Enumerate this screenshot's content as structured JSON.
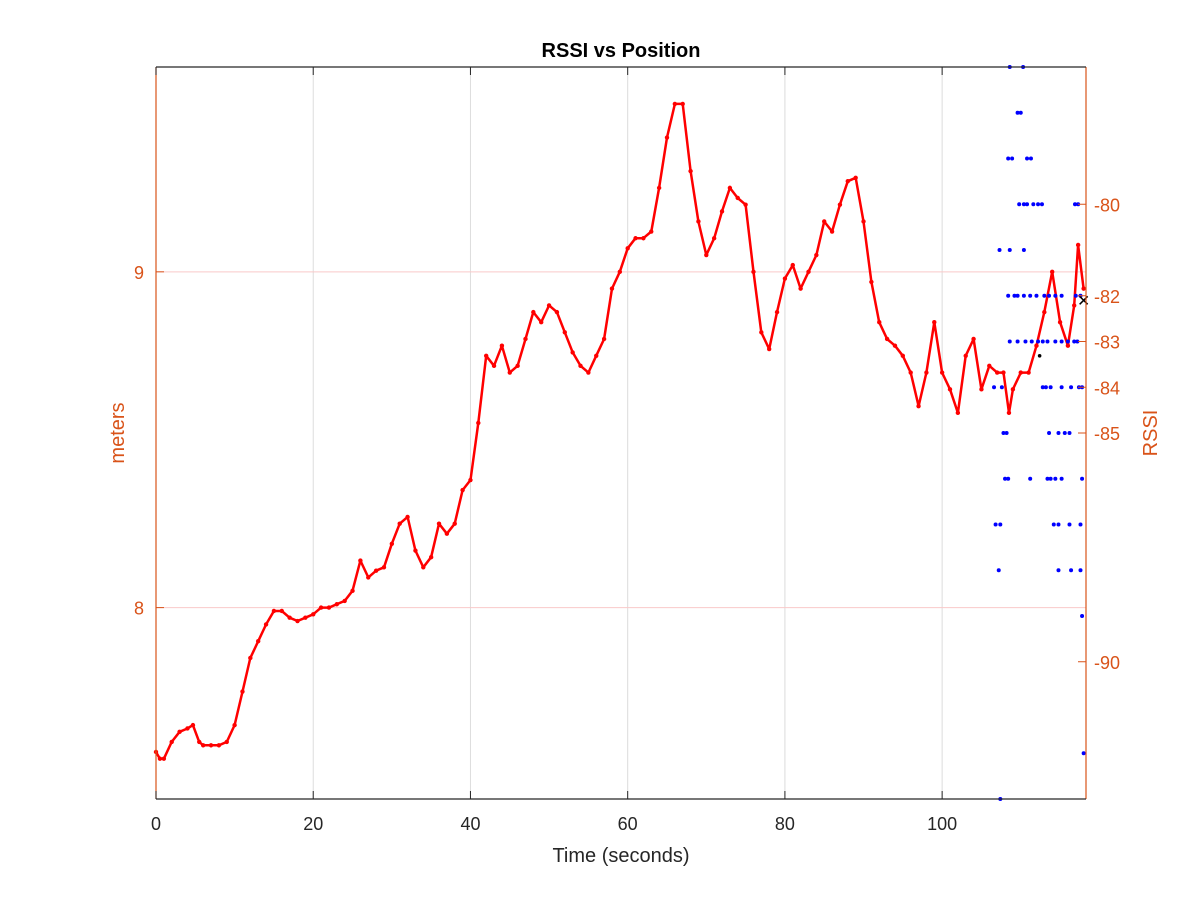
{
  "chart_data": {
    "type": "line",
    "title": "RSSI vs Position",
    "xlabel": "Time (seconds)",
    "ylabel_left": "meters",
    "ylabel_right": "RSSI",
    "xlim": [
      0,
      118.3
    ],
    "xticks": [
      0,
      20,
      40,
      60,
      80,
      100
    ],
    "ylim_left": [
      7.43,
      9.61
    ],
    "yticks_left": [
      8,
      9
    ],
    "ylim_right": [
      -93,
      -77
    ],
    "yticks_right": [
      -80,
      -82,
      -83,
      -84,
      -85,
      -90
    ],
    "grid": true,
    "colors": {
      "position": "#ff0000",
      "rssi": "#0000ff",
      "axis_accent": "#D95319",
      "grid": "#dcdcdc",
      "grid_right": "#f9c9c9"
    },
    "series": [
      {
        "name": "Position (meters)",
        "axis": "left",
        "style": "line-with-dots",
        "color": "#ff0000",
        "x": [
          0,
          0.5,
          1,
          2,
          3,
          4,
          4.7,
          5.5,
          6,
          7,
          8,
          9,
          10,
          11,
          12,
          13,
          14,
          15,
          16,
          17,
          18,
          19,
          20,
          21,
          22,
          23,
          24,
          25,
          26,
          27,
          28,
          29,
          30,
          31,
          32,
          33,
          34,
          35,
          36,
          37,
          38,
          39,
          40,
          41,
          42,
          43,
          44,
          45,
          46,
          47,
          48,
          49,
          50,
          51,
          52,
          53,
          54,
          55,
          56,
          57,
          58,
          59,
          60,
          61,
          62,
          63,
          64,
          65,
          66,
          67,
          68,
          69,
          70,
          71,
          72,
          73,
          74,
          75,
          76,
          77,
          78,
          79,
          80,
          81,
          82,
          83,
          84,
          85,
          86,
          87,
          88,
          89,
          90,
          91,
          92,
          93,
          94,
          95,
          96,
          97,
          98,
          99,
          100,
          101,
          102,
          103,
          104,
          105,
          106,
          107,
          107.8,
          108.5,
          109,
          110,
          111,
          112,
          113,
          114,
          115,
          116,
          116.8,
          117.3,
          118
        ],
        "values": [
          7.57,
          7.55,
          7.55,
          7.6,
          7.63,
          7.64,
          7.65,
          7.6,
          7.59,
          7.59,
          7.59,
          7.6,
          7.65,
          7.75,
          7.85,
          7.9,
          7.95,
          7.99,
          7.99,
          7.97,
          7.96,
          7.97,
          7.98,
          8.0,
          8.0,
          8.01,
          8.02,
          8.05,
          8.14,
          8.09,
          8.11,
          8.12,
          8.19,
          8.25,
          8.27,
          8.17,
          8.12,
          8.15,
          8.25,
          8.22,
          8.25,
          8.35,
          8.38,
          8.55,
          8.75,
          8.72,
          8.78,
          8.7,
          8.72,
          8.8,
          8.88,
          8.85,
          8.9,
          8.88,
          8.82,
          8.76,
          8.72,
          8.7,
          8.75,
          8.8,
          8.95,
          9.0,
          9.07,
          9.1,
          9.1,
          9.12,
          9.25,
          9.4,
          9.5,
          9.5,
          9.3,
          9.15,
          9.05,
          9.1,
          9.18,
          9.25,
          9.22,
          9.2,
          9.0,
          8.82,
          8.77,
          8.88,
          8.98,
          9.02,
          8.95,
          9.0,
          9.05,
          9.15,
          9.12,
          9.2,
          9.27,
          9.28,
          9.15,
          8.97,
          8.85,
          8.8,
          8.78,
          8.75,
          8.7,
          8.6,
          8.7,
          8.85,
          8.7,
          8.65,
          8.58,
          8.75,
          8.8,
          8.65,
          8.72,
          8.7,
          8.7,
          8.58,
          8.65,
          8.7,
          8.7,
          8.78,
          8.88,
          9.0,
          8.85,
          8.78,
          8.9,
          9.08,
          8.95
        ]
      },
      {
        "name": "RSSI",
        "axis": "right",
        "style": "dots",
        "color": "#0000ff",
        "x": [
          108.6,
          110.3,
          109.6,
          110.0,
          108.4,
          108.9,
          110.8,
          111.3,
          109.8,
          110.4,
          110.8,
          111.6,
          112.2,
          112.7,
          116.9,
          117.3,
          107.3,
          108.6,
          110.4,
          108.4,
          109.2,
          109.6,
          110.4,
          111.2,
          112.0,
          113.0,
          113.6,
          114.4,
          115.2,
          117.0,
          117.6,
          108.6,
          109.6,
          110.6,
          111.4,
          112.2,
          112.8,
          113.4,
          114.4,
          115.2,
          116.0,
          116.8,
          117.2,
          106.6,
          107.6,
          112.8,
          113.2,
          113.8,
          115.2,
          116.4,
          117.4,
          117.8,
          107.8,
          108.2,
          113.6,
          114.8,
          115.6,
          116.2,
          108.0,
          108.4,
          111.2,
          113.4,
          113.8,
          114.4,
          115.2,
          117.8,
          106.8,
          107.4,
          114.2,
          114.8,
          116.2,
          117.6,
          107.2,
          114.8,
          116.4,
          117.6,
          117.8,
          118.0,
          107.4
        ],
        "values": [
          -77.0,
          -77.0,
          -78.0,
          -78.0,
          -79.0,
          -79.0,
          -79.0,
          -79.0,
          -80.0,
          -80.0,
          -80.0,
          -80.0,
          -80.0,
          -80.0,
          -80.0,
          -80.0,
          -81.0,
          -81.0,
          -81.0,
          -82.0,
          -82.0,
          -82.0,
          -82.0,
          -82.0,
          -82.0,
          -82.0,
          -82.0,
          -82.0,
          -82.0,
          -82.0,
          -82.0,
          -83.0,
          -83.0,
          -83.0,
          -83.0,
          -83.0,
          -83.0,
          -83.0,
          -83.0,
          -83.0,
          -83.0,
          -83.0,
          -83.0,
          -84.0,
          -84.0,
          -84.0,
          -84.0,
          -84.0,
          -84.0,
          -84.0,
          -84.0,
          -84.0,
          -85.0,
          -85.0,
          -85.0,
          -85.0,
          -85.0,
          -85.0,
          -86.0,
          -86.0,
          -86.0,
          -86.0,
          -86.0,
          -86.0,
          -86.0,
          -86.0,
          -87.0,
          -87.0,
          -87.0,
          -87.0,
          -87.0,
          -87.0,
          -88.0,
          -88.0,
          -88.0,
          -88.0,
          -89.0,
          -92.0,
          -93.0
        ]
      }
    ],
    "markers": [
      {
        "type": "cross",
        "axis": "right",
        "x": 118.0,
        "y": -82.1,
        "color": "#000000"
      },
      {
        "type": "dot",
        "axis": "left",
        "x": 112.4,
        "y": 8.75,
        "color": "#000000"
      }
    ]
  }
}
